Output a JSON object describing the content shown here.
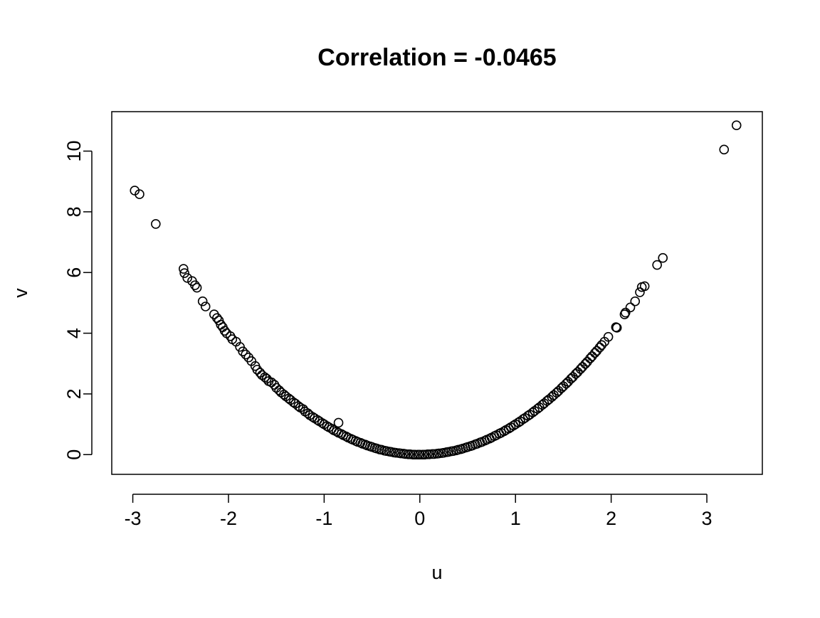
{
  "chart_data": {
    "type": "scatter",
    "title": "Correlation = -0.0465",
    "xlabel": "u",
    "ylabel": "v",
    "xlim": [
      -3.22,
      3.58
    ],
    "ylim": [
      -0.65,
      11.3
    ],
    "xticks": [
      -3,
      -2,
      -1,
      0,
      1,
      2,
      3
    ],
    "xtick_labels": [
      "-3",
      "-2",
      "-1",
      "0",
      "1",
      "2",
      "3"
    ],
    "yticks": [
      0,
      2,
      4,
      6,
      8,
      10
    ],
    "ytick_labels": [
      "0",
      "2",
      "4",
      "6",
      "8",
      "10"
    ],
    "grid": false,
    "legend": "none",
    "marker": "open-circle",
    "colors": {
      "points": "#000000",
      "axes": "#000000",
      "background": "#ffffff"
    },
    "points": [
      [
        -2.98,
        8.7
      ],
      [
        -2.93,
        8.58
      ],
      [
        -2.76,
        7.6
      ],
      [
        -2.47,
        6.12
      ],
      [
        -2.46,
        5.98
      ],
      [
        -2.43,
        5.82
      ],
      [
        -2.38,
        5.72
      ],
      [
        -2.35,
        5.58
      ],
      [
        -2.33,
        5.5
      ],
      [
        -2.27,
        5.05
      ],
      [
        -2.24,
        4.88
      ],
      [
        -2.15,
        4.62
      ],
      [
        -2.12,
        4.5
      ],
      [
        -2.1,
        4.42
      ],
      [
        -2.08,
        4.28
      ],
      [
        -2.06,
        4.2
      ],
      [
        -2.04,
        4.08
      ],
      [
        -2.02,
        4.0
      ],
      [
        -1.98,
        3.9
      ],
      [
        -1.96,
        3.8
      ],
      [
        -1.92,
        3.72
      ],
      [
        -1.88,
        3.55
      ],
      [
        -1.85,
        3.4
      ],
      [
        -1.82,
        3.3
      ],
      [
        -1.79,
        3.2
      ],
      [
        -1.76,
        3.08
      ],
      [
        -1.72,
        2.92
      ],
      [
        -1.7,
        2.8
      ],
      [
        -1.67,
        2.7
      ],
      [
        -1.65,
        2.62
      ],
      [
        -1.62,
        2.55
      ],
      [
        -1.6,
        2.5
      ],
      [
        -1.58,
        2.42
      ],
      [
        -1.55,
        2.38
      ],
      [
        -1.52,
        2.3
      ],
      [
        -1.5,
        2.2
      ],
      [
        -1.47,
        2.12
      ],
      [
        -1.45,
        2.05
      ],
      [
        -1.42,
        1.98
      ],
      [
        -1.4,
        1.92
      ],
      [
        -1.37,
        1.85
      ],
      [
        -1.35,
        1.8
      ],
      [
        -1.32,
        1.72
      ],
      [
        -1.3,
        1.68
      ],
      [
        -1.27,
        1.6
      ],
      [
        -1.25,
        1.55
      ],
      [
        -1.22,
        1.5
      ],
      [
        -1.2,
        1.42
      ],
      [
        -1.17,
        1.36
      ],
      [
        -1.15,
        1.3
      ],
      [
        -1.12,
        1.24
      ],
      [
        -1.1,
        1.2
      ],
      [
        -1.07,
        1.14
      ],
      [
        -1.05,
        1.1
      ],
      [
        -1.02,
        1.04
      ],
      [
        -1.0,
        1.0
      ],
      [
        -0.97,
        0.94
      ],
      [
        -0.95,
        0.9
      ],
      [
        -0.92,
        0.85
      ],
      [
        -0.9,
        0.8
      ],
      [
        -0.87,
        0.76
      ],
      [
        -0.85,
        0.72
      ],
      [
        -0.85,
        1.05
      ],
      [
        -0.82,
        0.68
      ],
      [
        -0.8,
        0.64
      ],
      [
        -0.77,
        0.6
      ],
      [
        -0.75,
        0.56
      ],
      [
        -0.72,
        0.52
      ],
      [
        -0.7,
        0.49
      ],
      [
        -0.67,
        0.45
      ],
      [
        -0.65,
        0.42
      ],
      [
        -0.62,
        0.39
      ],
      [
        -0.6,
        0.36
      ],
      [
        -0.57,
        0.33
      ],
      [
        -0.55,
        0.3
      ],
      [
        -0.52,
        0.27
      ],
      [
        -0.5,
        0.25
      ],
      [
        -0.47,
        0.22
      ],
      [
        -0.45,
        0.2
      ],
      [
        -0.42,
        0.17
      ],
      [
        -0.4,
        0.16
      ],
      [
        -0.37,
        0.13
      ],
      [
        -0.35,
        0.12
      ],
      [
        -0.32,
        0.1
      ],
      [
        -0.3,
        0.09
      ],
      [
        -0.27,
        0.07
      ],
      [
        -0.25,
        0.06
      ],
      [
        -0.22,
        0.05
      ],
      [
        -0.2,
        0.04
      ],
      [
        -0.17,
        0.03
      ],
      [
        -0.15,
        0.02
      ],
      [
        -0.12,
        0.01
      ],
      [
        -0.1,
        0.01
      ],
      [
        -0.07,
        0.0
      ],
      [
        -0.05,
        0.0
      ],
      [
        -0.02,
        0.0
      ],
      [
        0.0,
        0.0
      ],
      [
        0.03,
        0.0
      ],
      [
        0.05,
        0.0
      ],
      [
        0.08,
        0.01
      ],
      [
        0.1,
        0.01
      ],
      [
        0.13,
        0.02
      ],
      [
        0.15,
        0.02
      ],
      [
        0.18,
        0.03
      ],
      [
        0.2,
        0.04
      ],
      [
        0.23,
        0.05
      ],
      [
        0.25,
        0.06
      ],
      [
        0.28,
        0.08
      ],
      [
        0.3,
        0.09
      ],
      [
        0.33,
        0.11
      ],
      [
        0.35,
        0.12
      ],
      [
        0.38,
        0.14
      ],
      [
        0.4,
        0.16
      ],
      [
        0.43,
        0.18
      ],
      [
        0.45,
        0.2
      ],
      [
        0.48,
        0.23
      ],
      [
        0.5,
        0.25
      ],
      [
        0.53,
        0.28
      ],
      [
        0.55,
        0.3
      ],
      [
        0.58,
        0.34
      ],
      [
        0.6,
        0.36
      ],
      [
        0.63,
        0.4
      ],
      [
        0.65,
        0.42
      ],
      [
        0.68,
        0.46
      ],
      [
        0.7,
        0.49
      ],
      [
        0.73,
        0.53
      ],
      [
        0.75,
        0.56
      ],
      [
        0.78,
        0.61
      ],
      [
        0.8,
        0.64
      ],
      [
        0.83,
        0.69
      ],
      [
        0.85,
        0.72
      ],
      [
        0.88,
        0.77
      ],
      [
        0.9,
        0.81
      ],
      [
        0.93,
        0.86
      ],
      [
        0.95,
        0.9
      ],
      [
        0.98,
        0.96
      ],
      [
        1.0,
        1.0
      ],
      [
        1.03,
        1.06
      ],
      [
        1.05,
        1.1
      ],
      [
        1.08,
        1.17
      ],
      [
        1.1,
        1.21
      ],
      [
        1.13,
        1.28
      ],
      [
        1.15,
        1.32
      ],
      [
        1.18,
        1.39
      ],
      [
        1.2,
        1.44
      ],
      [
        1.23,
        1.51
      ],
      [
        1.25,
        1.56
      ],
      [
        1.28,
        1.64
      ],
      [
        1.3,
        1.69
      ],
      [
        1.33,
        1.77
      ],
      [
        1.35,
        1.82
      ],
      [
        1.38,
        1.9
      ],
      [
        1.4,
        1.96
      ],
      [
        1.43,
        2.04
      ],
      [
        1.45,
        2.1
      ],
      [
        1.48,
        2.19
      ],
      [
        1.5,
        2.25
      ],
      [
        1.53,
        2.34
      ],
      [
        1.55,
        2.4
      ],
      [
        1.58,
        2.5
      ],
      [
        1.6,
        2.56
      ],
      [
        1.63,
        2.66
      ],
      [
        1.65,
        2.72
      ],
      [
        1.68,
        2.82
      ],
      [
        1.7,
        2.89
      ],
      [
        1.73,
        2.99
      ],
      [
        1.75,
        3.06
      ],
      [
        1.78,
        3.17
      ],
      [
        1.8,
        3.24
      ],
      [
        1.83,
        3.35
      ],
      [
        1.85,
        3.42
      ],
      [
        1.88,
        3.53
      ],
      [
        1.9,
        3.61
      ],
      [
        1.93,
        3.72
      ],
      [
        1.97,
        3.88
      ],
      [
        2.05,
        4.2
      ],
      [
        2.06,
        4.18
      ],
      [
        2.14,
        4.62
      ],
      [
        2.15,
        4.68
      ],
      [
        2.2,
        4.85
      ],
      [
        2.25,
        5.05
      ],
      [
        2.3,
        5.35
      ],
      [
        2.32,
        5.52
      ],
      [
        2.35,
        5.55
      ],
      [
        2.48,
        6.25
      ],
      [
        2.54,
        6.48
      ],
      [
        3.18,
        10.05
      ],
      [
        3.31,
        10.85
      ]
    ]
  }
}
